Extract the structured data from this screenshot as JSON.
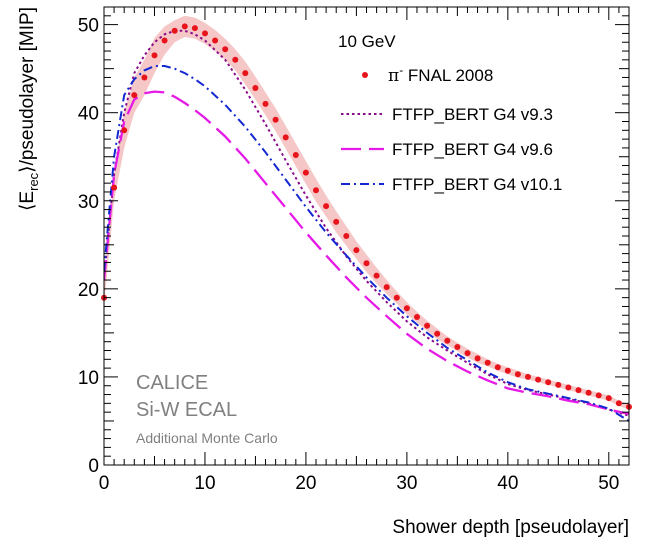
{
  "chart_data": {
    "type": "line",
    "title": "",
    "xlabel": "Shower depth [pseudolayer]",
    "ylabel_parts": {
      "open": "⟨E",
      "sub": "rec",
      "close": "⟩/pseudolayer [MIP]"
    },
    "xlim": [
      0,
      52
    ],
    "ylim": [
      0,
      52
    ],
    "x_ticks": [
      0,
      10,
      20,
      30,
      40,
      50
    ],
    "y_ticks": [
      0,
      10,
      20,
      30,
      40,
      50
    ],
    "grid": false,
    "legend_position": "top-right",
    "legend_header": "10 GeV",
    "watermark_lines": [
      "CALICE",
      "Si-W ECAL",
      "Additional Monte Carlo"
    ],
    "colors": {
      "data": "#e8141c",
      "band": "#f3b4b4",
      "v93": "#8a0a8a",
      "v96": "#e61ae6",
      "v101": "#1428d2"
    },
    "data_series": {
      "label_pi": "π",
      "label_sup": "-",
      "label_rest": " FNAL 2008",
      "x": [
        0,
        1,
        2,
        3,
        4,
        5,
        6,
        7,
        8,
        9,
        10,
        11,
        12,
        13,
        14,
        15,
        16,
        17,
        18,
        19,
        20,
        21,
        22,
        23,
        24,
        25,
        26,
        27,
        28,
        29,
        30,
        31,
        32,
        33,
        34,
        35,
        36,
        37,
        38,
        39,
        40,
        41,
        42,
        43,
        44,
        45,
        46,
        47,
        48,
        49,
        50,
        51,
        52
      ],
      "y": [
        19,
        31.5,
        38,
        42,
        44,
        46.5,
        48.2,
        49.3,
        49.8,
        49.6,
        49,
        48.2,
        47.2,
        46,
        44.5,
        42.8,
        41,
        39.2,
        37.2,
        35.2,
        33.2,
        31.2,
        29.4,
        27.6,
        26,
        24.4,
        22.9,
        21.5,
        20.2,
        19,
        17.8,
        16.8,
        15.8,
        14.9,
        14.1,
        13.4,
        12.7,
        12.1,
        11.6,
        11.1,
        10.7,
        10.3,
        10,
        9.7,
        9.4,
        9.1,
        8.8,
        8.5,
        8.2,
        7.9,
        7.6,
        7,
        6.6
      ],
      "band_upper": [
        20,
        33,
        40,
        44,
        46,
        48.5,
        49.8,
        50.5,
        51,
        50.8,
        50.2,
        49.4,
        48.4,
        47.2,
        45.8,
        44.1,
        42.3,
        40.5,
        38.5,
        36.5,
        34.5,
        32.5,
        30.6,
        28.8,
        27.1,
        25.4,
        23.9,
        22.4,
        21,
        19.7,
        18.5,
        17.4,
        16.4,
        15.5,
        14.6,
        13.9,
        13.2,
        12.6,
        12,
        11.5,
        11.1,
        10.7,
        10.3,
        10,
        9.7,
        9.4,
        9.1,
        8.8,
        8.5,
        8.2,
        7.9,
        7.3,
        6.9
      ],
      "band_lower": [
        18,
        30,
        36,
        40,
        42,
        44.5,
        46.6,
        48,
        48.6,
        48.4,
        47.8,
        47,
        46,
        44.8,
        43.2,
        41.5,
        39.7,
        37.9,
        35.9,
        33.9,
        31.9,
        29.9,
        28.2,
        26.4,
        24.9,
        23.4,
        21.9,
        20.6,
        19.4,
        18.3,
        17.1,
        16.2,
        15.2,
        14.3,
        13.6,
        12.9,
        12.2,
        11.6,
        11.2,
        10.7,
        10.3,
        9.9,
        9.7,
        9.4,
        9.1,
        8.8,
        8.5,
        8.2,
        7.9,
        7.6,
        7.3,
        6.7,
        6.3
      ]
    },
    "series": [
      {
        "name": "FTFP_BERT G4 v9.3",
        "key": "v93",
        "style": "dotted",
        "x": [
          0,
          1,
          2,
          3,
          4,
          5,
          6,
          7,
          8,
          9,
          10,
          12,
          14,
          16,
          18,
          20,
          22,
          24,
          26,
          28,
          30,
          32,
          34,
          36,
          38,
          40,
          42,
          44,
          46,
          48,
          50,
          52
        ],
        "y": [
          21,
          33,
          40,
          44.5,
          46.5,
          48,
          48.9,
          49.3,
          49.3,
          48.9,
          48.2,
          46,
          42.6,
          38.7,
          34.6,
          30.6,
          26.9,
          23.7,
          20.9,
          18.5,
          16.3,
          14.5,
          13,
          11.6,
          10.3,
          9.2,
          8.5,
          8,
          7.5,
          7,
          6.3,
          5.6
        ]
      },
      {
        "name": "FTFP_BERT G4 v9.6",
        "key": "v96",
        "style": "longdash",
        "x": [
          0,
          1,
          2,
          3,
          4,
          5,
          6,
          7,
          8,
          9,
          10,
          12,
          14,
          16,
          18,
          20,
          22,
          24,
          26,
          28,
          30,
          32,
          34,
          36,
          38,
          40,
          42,
          44,
          46,
          48,
          50,
          52
        ],
        "y": [
          21,
          33,
          39,
          41.5,
          42.2,
          42.4,
          42.3,
          41.8,
          41.1,
          40.3,
          39.4,
          37.3,
          34.8,
          32,
          29.2,
          26.4,
          23.8,
          21.3,
          19,
          16.9,
          14.9,
          13.2,
          11.8,
          10.6,
          9.6,
          8.7,
          8.2,
          7.8,
          7.3,
          6.9,
          6.3,
          5.8
        ]
      },
      {
        "name": "FTFP_BERT G4 v10.1",
        "key": "v101",
        "style": "dashdot",
        "x": [
          0,
          1,
          2,
          3,
          4,
          5,
          6,
          7,
          8,
          9,
          10,
          12,
          14,
          16,
          18,
          20,
          22,
          24,
          26,
          28,
          30,
          32,
          34,
          36,
          38,
          40,
          42,
          44,
          46,
          48,
          50,
          52
        ],
        "y": [
          22,
          35,
          42,
          43.8,
          44.8,
          45.3,
          45.3,
          45,
          44.5,
          43.8,
          43,
          40.9,
          38.4,
          35.5,
          32.4,
          29.3,
          26.4,
          23.8,
          21.3,
          19,
          16.9,
          15,
          13.3,
          11.9,
          10.5,
          9.4,
          8.6,
          8.1,
          7.6,
          7.1,
          6.4,
          5
        ]
      }
    ]
  }
}
